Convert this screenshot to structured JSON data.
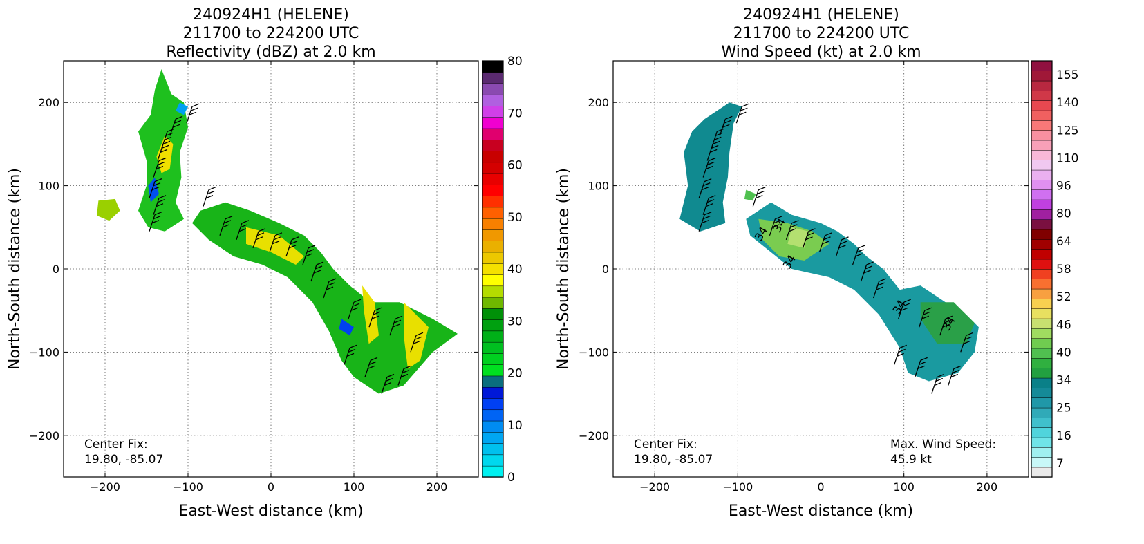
{
  "panels": [
    {
      "title": [
        "240924H1 (HELENE)",
        "211700 to 224200 UTC",
        "Reflectivity (dBZ) at 2.0 km"
      ],
      "center_fix": {
        "label": "Center Fix:",
        "value": "19.80, -85.07"
      }
    },
    {
      "title": [
        "240924H1 (HELENE)",
        "211700 to 224200 UTC",
        "Wind Speed (kt) at 2.0 km"
      ],
      "center_fix": {
        "label": "Center Fix:",
        "value": "19.80, -85.07"
      },
      "max_wind": {
        "label": "Max. Wind Speed:",
        "value": "45.9 kt"
      }
    }
  ],
  "chart_data": [
    {
      "type": "heatmap",
      "title": "240924H1 (HELENE) 211700 to 224200 UTC Reflectivity (dBZ) at 2.0 km",
      "xlabel": "East-West distance (km)",
      "ylabel": "North-South distance (km)",
      "xlim": [
        -250,
        250
      ],
      "ylim": [
        -250,
        250
      ],
      "xticks": [
        -200,
        -100,
        0,
        100,
        200
      ],
      "yticks": [
        -200,
        -100,
        0,
        100,
        200
      ],
      "grid": true,
      "colorbar": {
        "ticks": [
          0,
          10,
          20,
          30,
          40,
          50,
          60,
          70,
          80
        ],
        "colors": [
          "#00f0f0",
          "#00d8ee",
          "#00c0ee",
          "#00a6f2",
          "#008cf2",
          "#0064f4",
          "#0040f4",
          "#0018d8",
          "#0a6e7e",
          "#00e020",
          "#00d020",
          "#00c020",
          "#00b018",
          "#00a010",
          "#009008",
          "#6fb800",
          "#b4dc00",
          "#ffff00",
          "#f4e000",
          "#ecc800",
          "#eab000",
          "#f09800",
          "#f88000",
          "#ff6000",
          "#ff3000",
          "#ff0000",
          "#e80000",
          "#d40000",
          "#c80000",
          "#c80020",
          "#e0006e",
          "#f000d0",
          "#d040e8",
          "#b060e0",
          "#8a4ab0",
          "#5a2a70",
          "#000000"
        ]
      },
      "annotations": [
        "Center Fix:",
        "19.80, -85.07"
      ]
    },
    {
      "type": "heatmap",
      "title": "240924H1 (HELENE) 211700 to 224200 UTC Wind Speed (kt) at 2.0 km",
      "xlabel": "East-West distance (km)",
      "ylabel": "North-South distance (km)",
      "xlim": [
        -250,
        250
      ],
      "ylim": [
        -250,
        250
      ],
      "xticks": [
        -200,
        -100,
        0,
        100,
        200
      ],
      "yticks": [
        -200,
        -100,
        0,
        100,
        200
      ],
      "grid": true,
      "colorbar": {
        "ticks": [
          7,
          16,
          25,
          34,
          40,
          46,
          52,
          58,
          64,
          80,
          96,
          110,
          125,
          140,
          155
        ],
        "colors": [
          "#eaeaea",
          "#c8f8f8",
          "#a0f0f0",
          "#70e4e8",
          "#50d4dc",
          "#40c0cc",
          "#30aab8",
          "#2098a8",
          "#158a98",
          "#0a8088",
          "#22a040",
          "#30b040",
          "#50c050",
          "#70cc50",
          "#a0dc60",
          "#c8e070",
          "#e8e060",
          "#f8d050",
          "#f8a040",
          "#f87030",
          "#f04020",
          "#e01010",
          "#c00000",
          "#a00000",
          "#800000",
          "#7a1040",
          "#a020a0",
          "#c040e0",
          "#d070f0",
          "#e090f0",
          "#eab0f0",
          "#f0c8f0",
          "#f8b8d8",
          "#f8a0b8",
          "#f890a0",
          "#f87878",
          "#f06060",
          "#e84850",
          "#d03848",
          "#b82840",
          "#a01838",
          "#901040"
        ]
      },
      "contour_labels": [
        "34",
        "34",
        "34",
        "34",
        "34"
      ],
      "annotations": [
        "Center Fix:",
        "19.80, -85.07",
        "Max. Wind Speed:",
        "45.9 kt"
      ]
    }
  ]
}
